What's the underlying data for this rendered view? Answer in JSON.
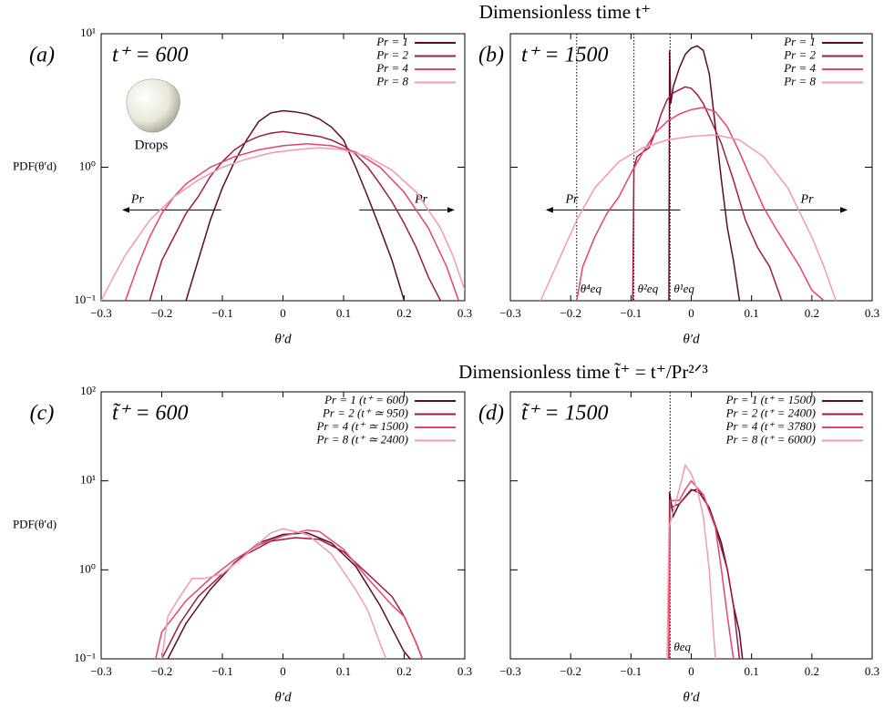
{
  "headings": [
    "Dimensionless time t⁺",
    "Dimensionless time t̃⁺ = t⁺/Pr²ᐟ³"
  ],
  "chart_data": [
    {
      "type": "line",
      "panel_label": "(a)",
      "annotation": "t⁺ = 600",
      "note": "Drops",
      "arrow_label": "Pr",
      "ylabel": "PDF(θ′d)",
      "xlabel": "θ′d",
      "ylog": true,
      "legend": "upper right",
      "ytick_labels": true,
      "xlim": [
        -0.3,
        0.3
      ],
      "ylim": [
        0.1,
        10
      ],
      "xticks": [
        {
          "value": -0.3,
          "label": "−0.3"
        },
        {
          "value": -0.2,
          "label": "−0.2"
        },
        {
          "value": -0.1,
          "label": "−0.1"
        },
        0,
        0.1,
        0.2,
        0.3
      ],
      "yticks": [
        {
          "value": 0.1,
          "label": "10⁻¹"
        },
        {
          "value": 1,
          "label": "10⁰"
        },
        {
          "value": 10,
          "label": "10¹"
        }
      ],
      "series": [
        {
          "name": "Pr = 1",
          "color": "#5c0a2a",
          "x": [
            -0.16,
            -0.14,
            -0.12,
            -0.1,
            -0.08,
            -0.06,
            -0.04,
            -0.02,
            0,
            0.02,
            0.04,
            0.06,
            0.08,
            0.1,
            0.12,
            0.14,
            0.16,
            0.18,
            0.2
          ],
          "values": [
            0.1,
            0.2,
            0.4,
            0.7,
            1.1,
            1.6,
            2.2,
            2.55,
            2.65,
            2.6,
            2.5,
            2.3,
            2.0,
            1.6,
            1.0,
            0.6,
            0.35,
            0.2,
            0.1
          ]
        },
        {
          "name": "Pr = 2",
          "color": "#9e1a4a",
          "x": [
            -0.22,
            -0.2,
            -0.18,
            -0.16,
            -0.14,
            -0.12,
            -0.1,
            -0.08,
            -0.06,
            -0.04,
            -0.02,
            0,
            0.02,
            0.04,
            0.06,
            0.08,
            0.1,
            0.12,
            0.14,
            0.16,
            0.18,
            0.2,
            0.22,
            0.24,
            0.26
          ],
          "values": [
            0.1,
            0.2,
            0.3,
            0.45,
            0.6,
            0.85,
            1.1,
            1.35,
            1.55,
            1.7,
            1.8,
            1.85,
            1.8,
            1.75,
            1.7,
            1.6,
            1.45,
            1.25,
            1.0,
            0.75,
            0.55,
            0.38,
            0.25,
            0.15,
            0.1
          ]
        },
        {
          "name": "Pr = 4",
          "color": "#e8436a",
          "x": [
            -0.26,
            -0.24,
            -0.22,
            -0.2,
            -0.18,
            -0.16,
            -0.12,
            -0.08,
            -0.04,
            0,
            0.04,
            0.08,
            0.12,
            0.16,
            0.2,
            0.24,
            0.27,
            0.29
          ],
          "values": [
            0.1,
            0.18,
            0.3,
            0.45,
            0.6,
            0.75,
            1.0,
            1.2,
            1.35,
            1.45,
            1.5,
            1.45,
            1.3,
            1.0,
            0.65,
            0.35,
            0.18,
            0.1
          ]
        },
        {
          "name": "Pr = 8",
          "color": "#f59aaa",
          "x": [
            -0.3,
            -0.28,
            -0.26,
            -0.22,
            -0.18,
            -0.14,
            -0.1,
            -0.06,
            -0.02,
            0.02,
            0.06,
            0.1,
            0.14,
            0.18,
            0.22,
            0.26,
            0.28,
            0.3
          ],
          "values": [
            0.1,
            0.15,
            0.22,
            0.4,
            0.6,
            0.8,
            1.0,
            1.15,
            1.28,
            1.35,
            1.4,
            1.35,
            1.2,
            0.95,
            0.65,
            0.35,
            0.22,
            0.12
          ]
        }
      ]
    },
    {
      "type": "line",
      "panel_label": "(b)",
      "annotation": "t⁺ = 1500",
      "arrow_label": "Pr",
      "xlabel": "θ′d",
      "ylog": true,
      "legend": "upper right",
      "ytick_labels": false,
      "xlim": [
        -0.3,
        0.3
      ],
      "ylim": [
        0.1,
        10
      ],
      "xticks": [
        {
          "value": -0.3,
          "label": "−0.3"
        },
        {
          "value": -0.2,
          "label": "−0.2"
        },
        {
          "value": -0.1,
          "label": "−0.1"
        },
        0,
        0.1,
        0.2,
        0.3
      ],
      "yticks": [
        0.1,
        1,
        10
      ],
      "vlines": [
        {
          "value": -0.19,
          "label": "θ⁴eq"
        },
        {
          "value": -0.095,
          "label": "θ²eq"
        },
        {
          "value": -0.035,
          "label": "θ¹eq"
        }
      ],
      "series": [
        {
          "name": "Pr = 1",
          "color": "#5c0a2a",
          "x": [
            -0.037,
            -0.036,
            -0.034,
            -0.03,
            -0.02,
            -0.01,
            0,
            0.01,
            0.02,
            0.03,
            0.04,
            0.05,
            0.06,
            0.07,
            0.08
          ],
          "values": [
            0.1,
            7.5,
            3,
            4,
            5.5,
            7,
            7.8,
            8.1,
            7.5,
            5,
            2,
            0.8,
            0.35,
            0.2,
            0.1
          ]
        },
        {
          "name": "Pr = 2",
          "color": "#9e1a4a",
          "x": [
            -0.097,
            -0.095,
            -0.09,
            -0.08,
            -0.07,
            -0.06,
            -0.05,
            -0.04,
            -0.03,
            -0.02,
            -0.01,
            0,
            0.01,
            0.02,
            0.03,
            0.05,
            0.07,
            0.09,
            0.11,
            0.13,
            0.15
          ],
          "values": [
            0.1,
            1.0,
            1.2,
            1.3,
            1.4,
            1.8,
            2.5,
            3.2,
            3.6,
            3.8,
            4.0,
            3.9,
            3.5,
            3.0,
            2.4,
            1.5,
            0.8,
            0.4,
            0.25,
            0.18,
            0.1
          ]
        },
        {
          "name": "Pr = 4",
          "color": "#e8436a",
          "x": [
            -0.19,
            -0.18,
            -0.16,
            -0.14,
            -0.12,
            -0.1,
            -0.08,
            -0.06,
            -0.04,
            -0.02,
            0,
            0.02,
            0.04,
            0.06,
            0.08,
            0.1,
            0.12,
            0.14,
            0.16,
            0.18,
            0.2,
            0.22
          ],
          "values": [
            0.1,
            0.18,
            0.3,
            0.45,
            0.6,
            0.9,
            1.3,
            1.8,
            2.2,
            2.5,
            2.7,
            2.8,
            2.6,
            2.0,
            1.3,
            0.8,
            0.5,
            0.35,
            0.25,
            0.18,
            0.12,
            0.1
          ]
        },
        {
          "name": "Pr = 8",
          "color": "#f59aaa",
          "x": [
            -0.25,
            -0.22,
            -0.19,
            -0.16,
            -0.12,
            -0.08,
            -0.04,
            0,
            0.04,
            0.08,
            0.12,
            0.16,
            0.2,
            0.22,
            0.24
          ],
          "values": [
            0.1,
            0.2,
            0.4,
            0.7,
            1.1,
            1.4,
            1.6,
            1.7,
            1.75,
            1.6,
            1.2,
            0.7,
            0.3,
            0.18,
            0.1
          ]
        }
      ]
    },
    {
      "type": "line",
      "panel_label": "(c)",
      "annotation": "t̃⁺ = 600",
      "ylabel": "PDF(θ′d)",
      "xlabel": "θ′d",
      "ylog": true,
      "legend": "upper right",
      "ytick_labels": true,
      "xlim": [
        -0.3,
        0.3
      ],
      "ylim": [
        0.1,
        100
      ],
      "xticks": [
        {
          "value": -0.3,
          "label": "−0.3"
        },
        {
          "value": -0.2,
          "label": "−0.2"
        },
        {
          "value": -0.1,
          "label": "−0.1"
        },
        0,
        0.1,
        0.2,
        0.3
      ],
      "yticks": [
        {
          "value": 0.1,
          "label": "10⁻¹"
        },
        {
          "value": 1,
          "label": "10⁰"
        },
        {
          "value": 10,
          "label": "10¹"
        },
        {
          "value": 100,
          "label": "10²"
        }
      ],
      "series": [
        {
          "name": "Pr = 1 (t⁺ = 600)",
          "color": "#5c0a2a",
          "x": [
            -0.19,
            -0.16,
            -0.12,
            -0.08,
            -0.04,
            0,
            0.04,
            0.08,
            0.12,
            0.16,
            0.2,
            0.21
          ],
          "values": [
            0.1,
            0.25,
            0.6,
            1.2,
            2.0,
            2.5,
            2.6,
            2.0,
            1.1,
            0.4,
            0.12,
            0.1
          ]
        },
        {
          "name": "Pr = 2 (t⁺ ≃ 950)",
          "color": "#9e1a4a",
          "x": [
            -0.2,
            -0.17,
            -0.14,
            -0.1,
            -0.06,
            -0.02,
            0.02,
            0.06,
            0.1,
            0.14,
            0.18,
            0.2,
            0.22,
            0.23
          ],
          "values": [
            0.1,
            0.25,
            0.5,
            0.9,
            1.5,
            2.1,
            2.3,
            2.2,
            1.6,
            0.9,
            0.5,
            0.3,
            0.15,
            0.1
          ]
        },
        {
          "name": "Pr = 4 (t⁺ ≃ 1500)",
          "color": "#e8436a",
          "x": [
            -0.21,
            -0.2,
            -0.18,
            -0.16,
            -0.12,
            -0.08,
            -0.04,
            0,
            0.04,
            0.06,
            0.1,
            0.14,
            0.18,
            0.2,
            0.22,
            0.23
          ],
          "values": [
            0.1,
            0.2,
            0.3,
            0.45,
            0.8,
            1.3,
            1.9,
            2.4,
            2.8,
            2.7,
            1.7,
            0.8,
            0.4,
            0.3,
            0.15,
            0.1
          ]
        },
        {
          "name": "Pr = 8 (t⁺ ≃ 2400)",
          "color": "#f59aaa",
          "x": [
            -0.2,
            -0.19,
            -0.17,
            -0.15,
            -0.13,
            -0.1,
            -0.06,
            -0.02,
            0,
            0.04,
            0.08,
            0.12,
            0.14,
            0.16,
            0.17
          ],
          "values": [
            0.1,
            0.3,
            0.5,
            0.8,
            0.8,
            0.9,
            1.5,
            2.6,
            2.9,
            2.5,
            1.5,
            0.6,
            0.35,
            0.15,
            0.1
          ]
        }
      ]
    },
    {
      "type": "line",
      "panel_label": "(d)",
      "annotation": "t̃⁺ = 1500",
      "xlabel": "θ′d",
      "ylog": true,
      "legend": "upper right",
      "ytick_labels": false,
      "xlim": [
        -0.3,
        0.3
      ],
      "ylim": [
        0.1,
        100
      ],
      "xticks": [
        {
          "value": -0.3,
          "label": "−0.3"
        },
        {
          "value": -0.2,
          "label": "−0.2"
        },
        {
          "value": -0.1,
          "label": "−0.1"
        },
        0,
        0.1,
        0.2,
        0.3
      ],
      "yticks": [
        0.1,
        1,
        10,
        100
      ],
      "vlines": [
        {
          "value": -0.035,
          "label": "θeq"
        }
      ],
      "series": [
        {
          "name": "Pr = 1 (t⁺ = 1500)",
          "color": "#5c0a2a",
          "x": [
            -0.037,
            -0.036,
            -0.03,
            -0.02,
            0,
            0.01,
            0.03,
            0.05,
            0.06,
            0.07,
            0.08,
            0.085
          ],
          "values": [
            0.1,
            7.5,
            4,
            5.5,
            7.8,
            8,
            5,
            2,
            1,
            0.4,
            0.2,
            0.1
          ]
        },
        {
          "name": "Pr = 2 (t⁺ = 2400)",
          "color": "#9e1a4a",
          "x": [
            -0.037,
            -0.035,
            -0.02,
            0,
            0.02,
            0.04,
            0.06,
            0.07,
            0.08
          ],
          "values": [
            0.1,
            5,
            5.5,
            8,
            7,
            3,
            1,
            0.4,
            0.1
          ]
        },
        {
          "name": "Pr = 4 (t⁺ = 3780)",
          "color": "#e8436a",
          "x": [
            -0.037,
            -0.035,
            -0.02,
            -0.01,
            0,
            0.02,
            0.04,
            0.05,
            0.06,
            0.07
          ],
          "values": [
            0.1,
            6,
            6,
            8,
            10,
            7,
            3,
            1,
            0.3,
            0.1
          ]
        },
        {
          "name": "Pr = 8 (t⁺ = 6000)",
          "color": "#f59aaa",
          "x": [
            -0.04,
            -0.037,
            -0.02,
            -0.01,
            0,
            0.01,
            0.02,
            0.03,
            0.035,
            0.04
          ],
          "values": [
            0.1,
            3,
            8,
            15,
            12,
            8,
            4,
            1,
            0.3,
            0.1
          ]
        }
      ]
    }
  ]
}
